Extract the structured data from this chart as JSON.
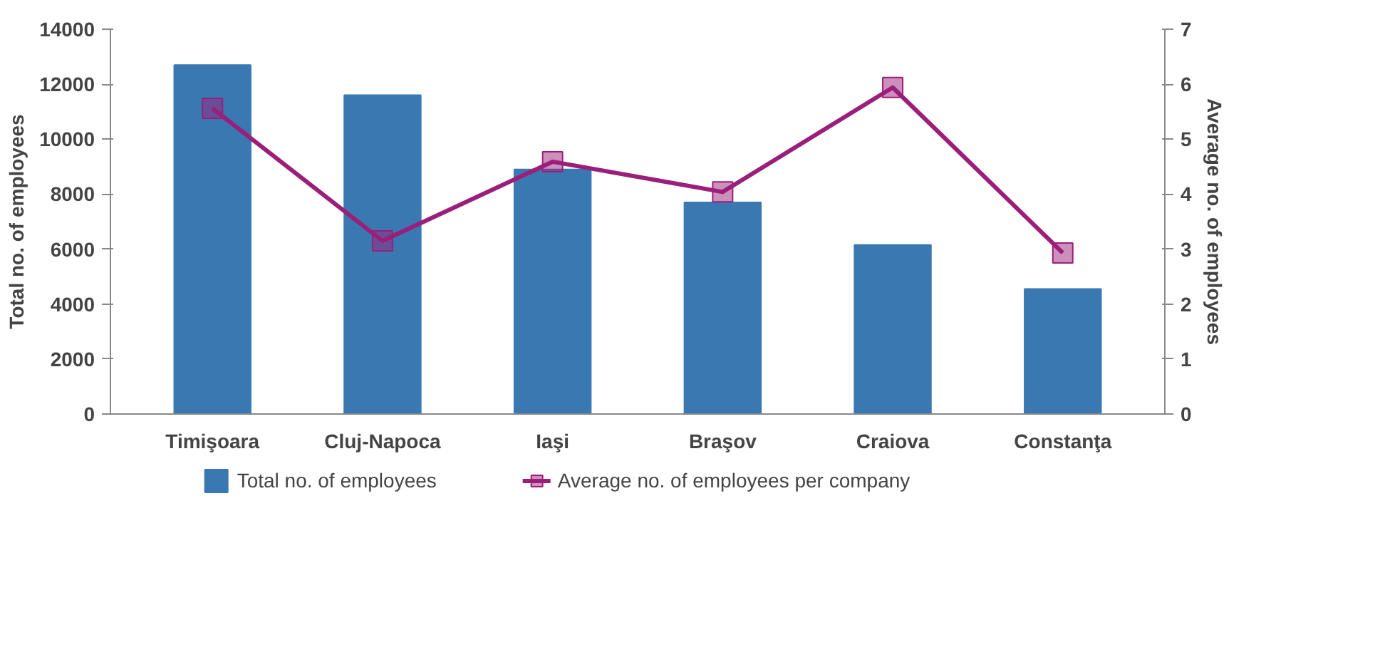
{
  "chart_data": {
    "type": "bar",
    "categories": [
      "Timişoara",
      "Cluj-Napoca",
      "Iaşi",
      "Braşov",
      "Craiova",
      "Constanţa"
    ],
    "ylabel": "Total no. of employees",
    "y2label": "Average no. of employees",
    "ylim": [
      0,
      14000
    ],
    "yticks": [
      0,
      2000,
      4000,
      6000,
      8000,
      10000,
      12000,
      14000
    ],
    "y2lim": [
      0,
      7
    ],
    "y2ticks": [
      0,
      1,
      2,
      3,
      4,
      5,
      6,
      7
    ],
    "series": [
      {
        "name": "Total no. of employees",
        "color": "#3a78b2",
        "values": [
          12700,
          11600,
          8900,
          7700,
          6150,
          4550
        ]
      },
      {
        "name": "Average no. of employees per company",
        "type": "line",
        "axis": "y2",
        "marker": "square",
        "color": "#9b1f7a",
        "values": [
          5.56,
          3.15,
          4.59,
          4.04,
          5.94,
          2.93
        ]
      }
    ],
    "legend": "bottom",
    "grid": false
  }
}
